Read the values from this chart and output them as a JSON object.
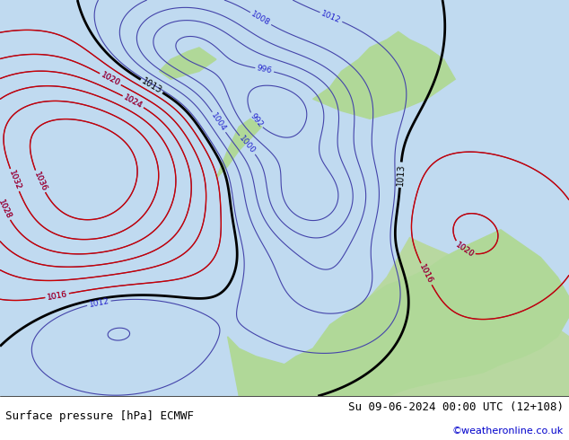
{
  "title_left": "Surface pressure [hPa] ECMWF",
  "title_right": "Su 09-06-2024 00:00 UTC (12+108)",
  "credit": "©weatheronline.co.uk",
  "bg_color_ocean": "#d0e8f0",
  "bg_color_land": "#c8e6c0",
  "bg_color_bottom": "#f0f0f0",
  "contour_blue_color": "#0000cc",
  "contour_red_color": "#cc0000",
  "contour_black_color": "#000000",
  "bottom_bar_height": 0.1,
  "figsize": [
    6.34,
    4.9
  ],
  "dpi": 100
}
